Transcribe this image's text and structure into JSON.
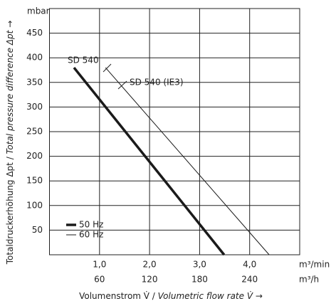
{
  "chart_data": {
    "type": "line",
    "y_label": [
      "Totaldruckerhöhung Δpt / ",
      "Total pressure difference Δpt →"
    ],
    "x_label": [
      "Volumenstrom V̇ / ",
      "Volumetric flow rate V̇ →"
    ],
    "y_unit": "mbar",
    "x_unit": "m³/min",
    "x2_unit": "m³/h",
    "xlim": [
      0,
      5
    ],
    "ylim": [
      0,
      500
    ],
    "yticks": [
      50,
      100,
      150,
      200,
      250,
      300,
      350,
      400,
      450
    ],
    "xticks": [
      {
        "value": 1,
        "label": "1,0"
      },
      {
        "value": 2,
        "label": "2,0"
      },
      {
        "value": 3,
        "label": "3,0"
      },
      {
        "value": 4,
        "label": "4,0"
      }
    ],
    "x2lim": [
      0,
      300
    ],
    "x2ticks": [
      60,
      120,
      180,
      240
    ],
    "grid": true,
    "series": [
      {
        "name": "50 Hz",
        "color": "#1a1a1a",
        "width": 3.5,
        "x": [
          0.49,
          3.49
        ],
        "values": [
          380,
          0
        ]
      },
      {
        "name": "60 Hz",
        "color": "#1a1a1a",
        "width": 1,
        "x": [
          1.12,
          4.39
        ],
        "values": [
          380,
          0
        ]
      }
    ],
    "annotations": [
      "SD 540",
      "SD 540 (IE3)"
    ]
  }
}
